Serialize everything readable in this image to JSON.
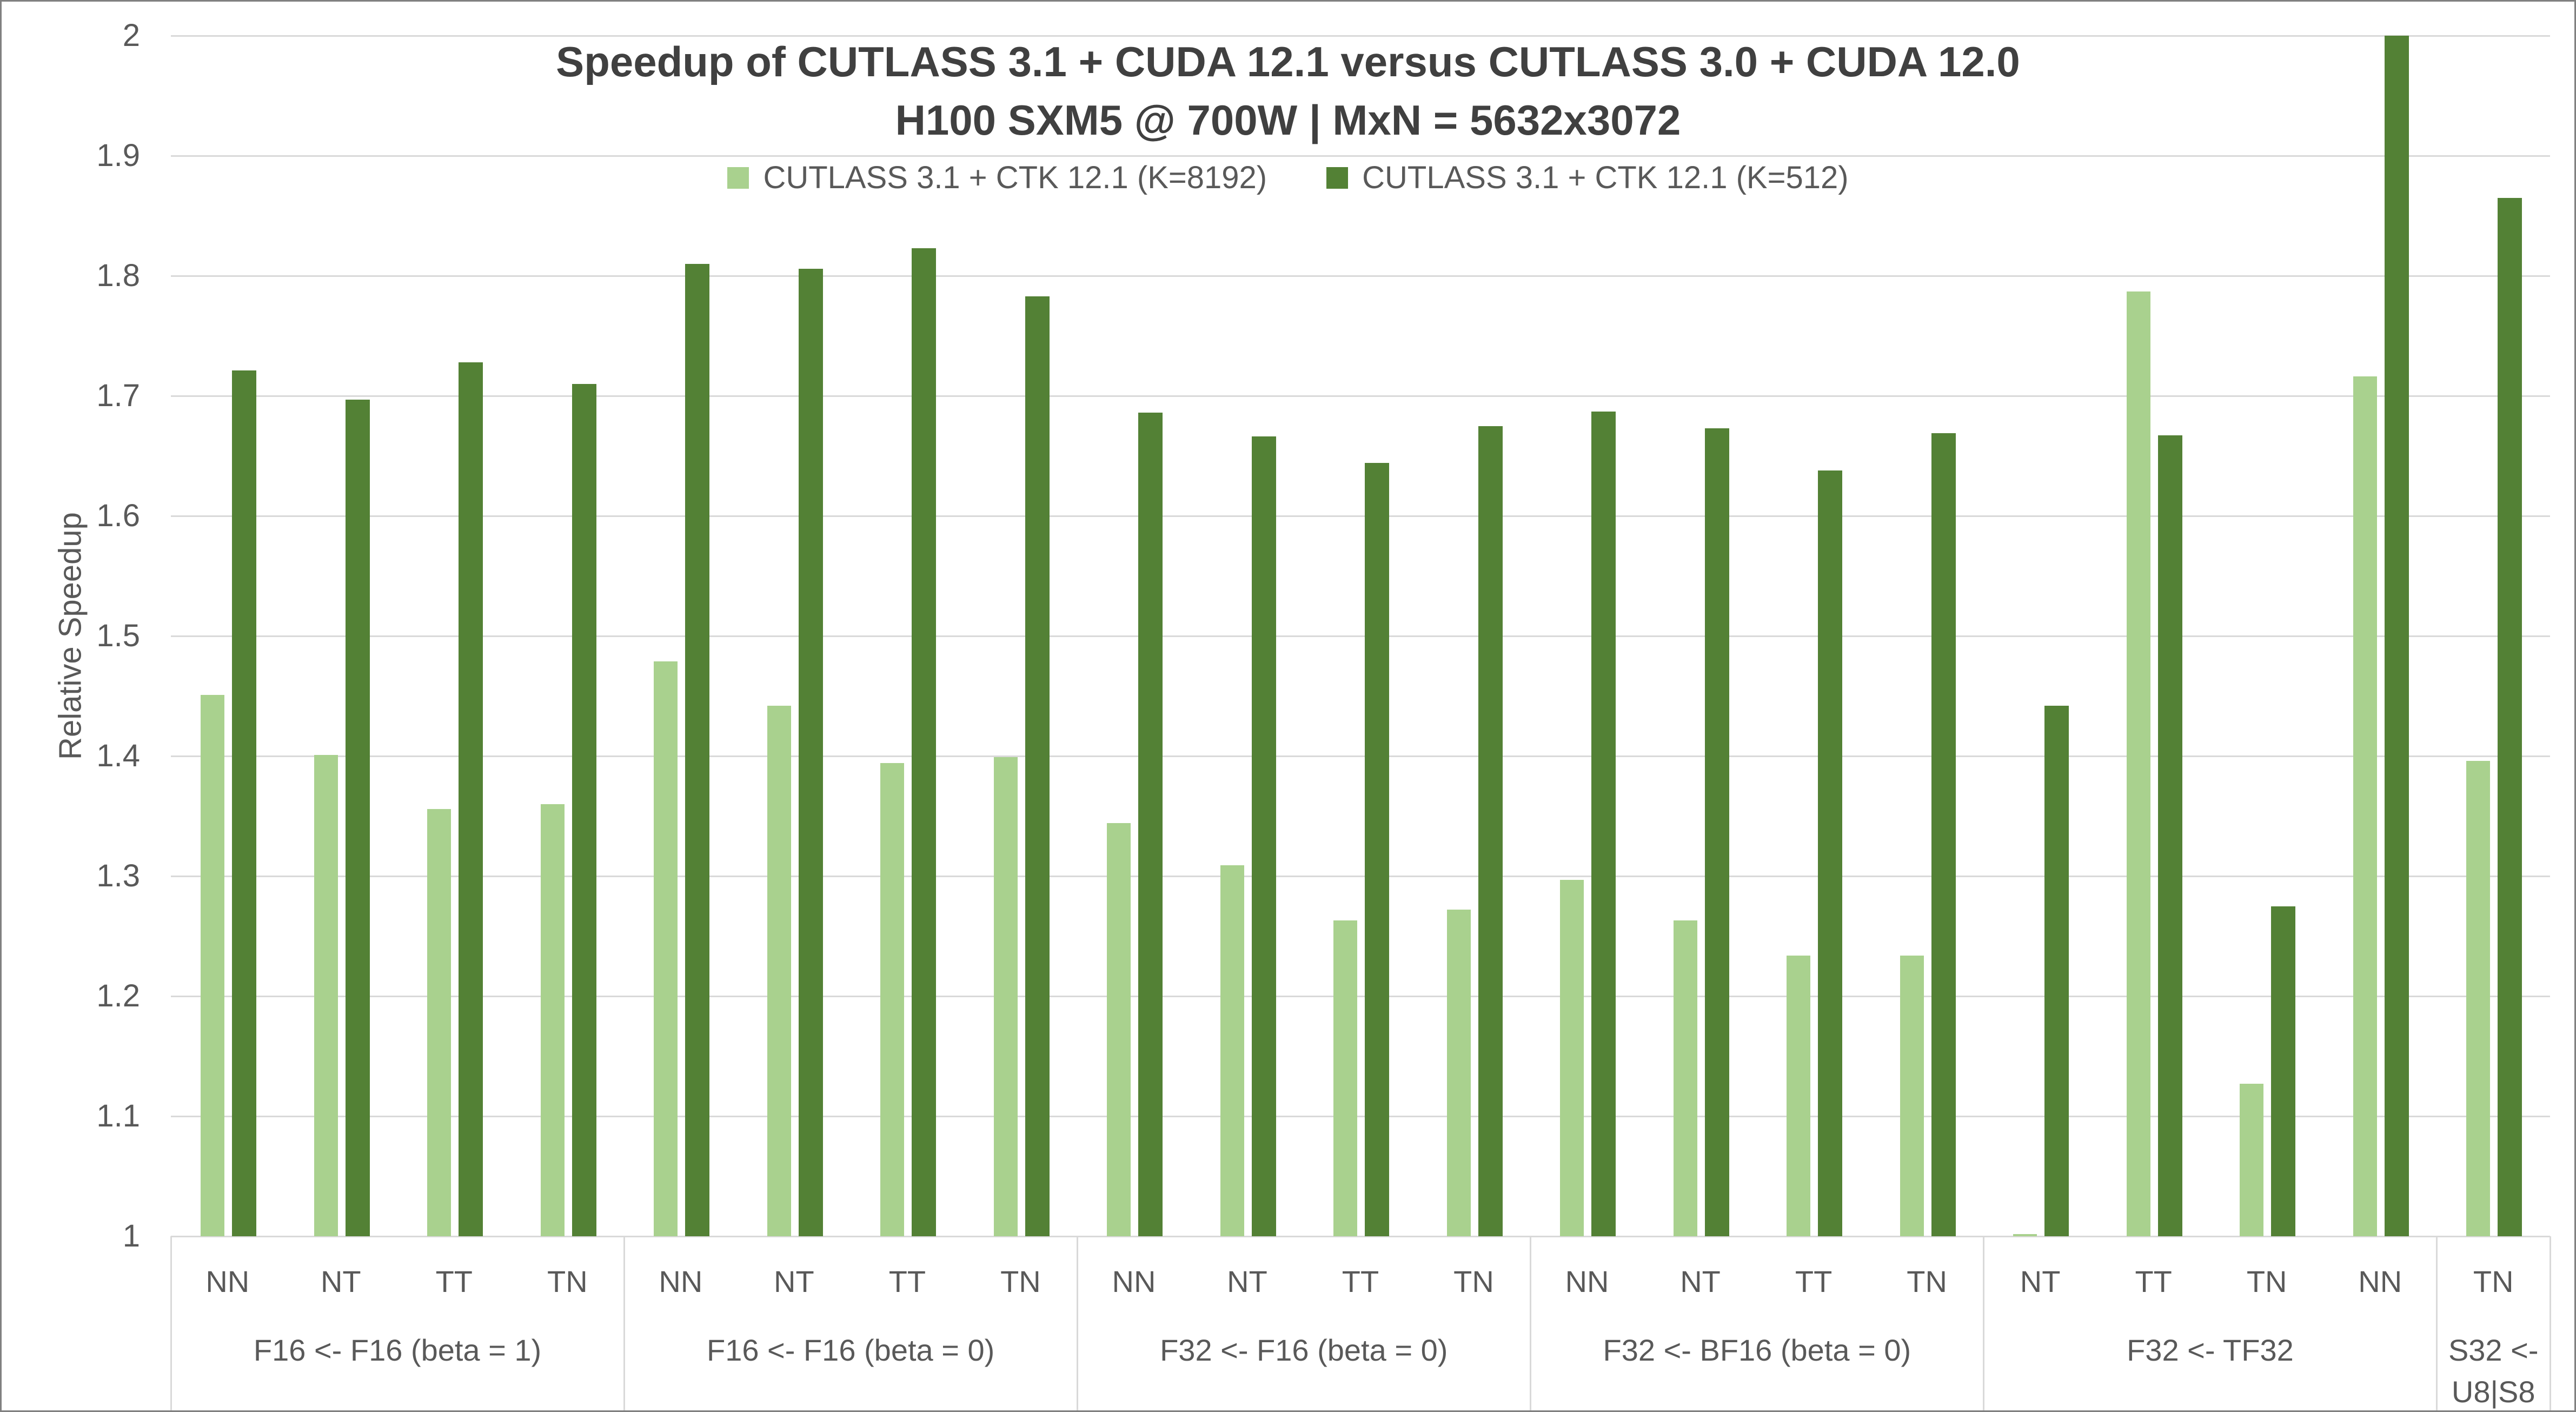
{
  "chart_data": {
    "type": "bar",
    "title": "Speedup of CUTLASS 3.1 + CUDA 12.1 versus CUTLASS 3.0 + CUDA 12.0",
    "subtitle": "H100 SXM5 @ 700W | MxN = 5632x3072",
    "ylabel": "Relative Speedup",
    "y_axis": {
      "min": 1,
      "max": 2,
      "step": 0.1,
      "tick_labels_top_to_bottom": [
        "2",
        "1.9",
        "1.8",
        "1.7",
        "1.6",
        "1.5",
        "1.4",
        "1.3",
        "1.2",
        "1.1",
        "1"
      ],
      "grid": true
    },
    "legend_position": "top",
    "series": [
      {
        "name": "CUTLASS 3.1 + CTK 12.1 (K=8192)",
        "color": "#A9D18E"
      },
      {
        "name": "CUTLASS 3.1 + CTK 12.1 (K=512)",
        "color": "#538135"
      }
    ],
    "groups": [
      {
        "label": "F16 <- F16 (beta = 1)",
        "categories": [
          "NN",
          "NT",
          "TT",
          "TN"
        ],
        "values_k8192": [
          1.451,
          1.401,
          1.356,
          1.36
        ],
        "values_k512": [
          1.721,
          1.697,
          1.728,
          1.71
        ]
      },
      {
        "label": "F16 <- F16 (beta = 0)",
        "categories": [
          "NN",
          "NT",
          "TT",
          "TN"
        ],
        "values_k8192": [
          1.479,
          1.442,
          1.394,
          1.399
        ],
        "values_k512": [
          1.81,
          1.806,
          1.823,
          1.783
        ]
      },
      {
        "label": "F32 <- F16 (beta = 0)",
        "categories": [
          "NN",
          "NT",
          "TT",
          "TN"
        ],
        "values_k8192": [
          1.344,
          1.309,
          1.263,
          1.272
        ],
        "values_k512": [
          1.686,
          1.666,
          1.644,
          1.675
        ]
      },
      {
        "label": "F32 <- BF16 (beta = 0)",
        "categories": [
          "NN",
          "NT",
          "TT",
          "TN"
        ],
        "values_k8192": [
          1.297,
          1.263,
          1.234,
          1.234
        ],
        "values_k512": [
          1.687,
          1.673,
          1.638,
          1.669
        ]
      },
      {
        "label": "F32 <- TF32",
        "categories": [
          "NT",
          "TT",
          "TN",
          "NN"
        ],
        "values_k8192": [
          1.002,
          1.787,
          1.127,
          1.716
        ],
        "values_k512": [
          1.442,
          1.667,
          1.275,
          2.0
        ]
      },
      {
        "label": "S32 <- U8|S8",
        "categories": [
          "TN"
        ],
        "values_k8192": [
          1.396
        ],
        "values_k512": [
          1.865
        ]
      }
    ],
    "colors": {
      "gridline": "#D9D9D9",
      "axis_text": "#595959",
      "title_text": "#404040",
      "border": "#808080",
      "background": "#FFFFFF"
    }
  }
}
